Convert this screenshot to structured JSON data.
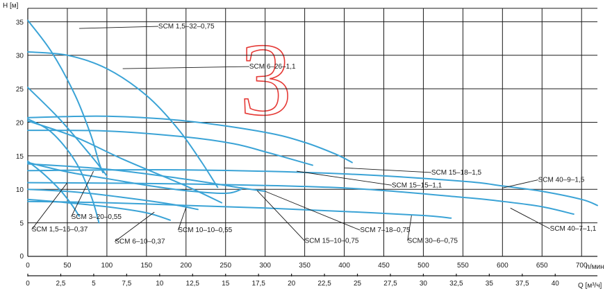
{
  "chart_data": {
    "type": "line",
    "title": "",
    "ylabel": "H [м]",
    "xlabel": "л/мин",
    "x2label": "Q [м³/ч]",
    "xlim": [
      0,
      720
    ],
    "ylim": [
      0,
      37
    ],
    "x_ticks": [
      "0",
      "50",
      "100",
      "150",
      "200",
      "250",
      "300",
      "350",
      "400",
      "450",
      "500",
      "550",
      "600",
      "650",
      "700"
    ],
    "y_ticks": [
      "5",
      "10",
      "15",
      "20",
      "25",
      "30",
      "35"
    ],
    "x2_ticks": [
      "0",
      "2,5",
      "5",
      "7,5",
      "10",
      "12,5",
      "15",
      "17,5",
      "20",
      "22,5",
      "25",
      "27,5",
      "30",
      "32,5",
      "35",
      "37,5",
      "40"
    ],
    "grid": true,
    "series": [
      {
        "name": "SCM 1,5–32–0,75",
        "x": [
          0,
          30,
          60,
          80,
          90,
          95
        ],
        "y": [
          35.2,
          30.5,
          24.0,
          18.0,
          14.0,
          12.5
        ],
        "label_at": [
          65,
          34
        ]
      },
      {
        "name": "SCM 6–26–1,1",
        "x": [
          0,
          50,
          100,
          150,
          190,
          220,
          240
        ],
        "y": [
          30.5,
          30.0,
          28.0,
          24.0,
          19.0,
          14.0,
          10.3
        ],
        "label_at": [
          120,
          28
        ]
      },
      {
        "name": "SCM 15–18–1,5",
        "x": [
          0,
          100,
          200,
          300,
          350,
          390,
          410
        ],
        "y": [
          20.7,
          20.9,
          20.2,
          18.5,
          17.0,
          15.2,
          14.0
        ],
        "label_at": [
          400,
          13.2
        ]
      },
      {
        "name": "SCM 15–15–1,1",
        "x": [
          0,
          100,
          200,
          260,
          300,
          330,
          360
        ],
        "y": [
          18.8,
          18.7,
          17.8,
          16.8,
          15.6,
          14.6,
          13.6
        ],
        "label_at": [
          340,
          12.7
        ]
      },
      {
        "name": "SCM 40–9–1,5",
        "x": [
          0,
          200,
          400,
          550,
          600,
          650,
          700,
          720
        ],
        "y": [
          12.8,
          12.9,
          12.3,
          11.2,
          10.5,
          9.7,
          8.5,
          7.6
        ],
        "label_at": [
          600,
          10.2
        ]
      },
      {
        "name": "SCM 40–7–1,1",
        "x": [
          0,
          200,
          400,
          550,
          600,
          650,
          690
        ],
        "y": [
          11.0,
          10.8,
          10.2,
          8.8,
          8.2,
          7.4,
          6.3
        ],
        "label_at": [
          610,
          7.2
        ]
      },
      {
        "name": "SCM 30–6–0,75",
        "x": [
          0,
          100,
          200,
          300,
          400,
          500,
          535
        ],
        "y": [
          8.2,
          8.0,
          7.6,
          7.2,
          6.7,
          6.1,
          5.7
        ],
        "label_at": [
          485,
          6.1
        ]
      },
      {
        "name": "SCM 15–10–0,75",
        "x": [
          0,
          100,
          200,
          270,
          300
        ],
        "y": [
          13.8,
          13.0,
          11.5,
          10.2,
          9.7
        ],
        "label_at": [
          290,
          9.8
        ]
      },
      {
        "name": "SCM 7–18–0,75",
        "x": [
          0,
          50,
          100,
          150,
          200,
          250,
          270
        ],
        "y": [
          14.0,
          12.6,
          11.6,
          10.6,
          9.8,
          9.4,
          10.0
        ],
        "label_at": [
          300,
          9.7
        ]
      },
      {
        "name": "SCM 3–20–0,55",
        "x": [
          0,
          30,
          60,
          80,
          90
        ],
        "y": [
          20.5,
          18.5,
          14.2,
          9.0,
          5.0
        ],
        "label_at": [
          83,
          12.7
        ]
      },
      {
        "name": "SCM 1,5–16–0,37",
        "x": [
          0,
          20,
          40,
          55,
          65
        ],
        "y": [
          14.2,
          12.3,
          10.0,
          7.8,
          6.0
        ],
        "label_at": [
          50,
          11.0
        ]
      },
      {
        "name": "SCM 6–10–0,37",
        "x": [
          0,
          50,
          100,
          150,
          180
        ],
        "y": [
          8.5,
          8.0,
          7.4,
          6.5,
          5.4
        ],
        "label_at": [
          160,
          6.6
        ]
      },
      {
        "name": "SCM 10–10–0,55",
        "x": [
          0,
          60,
          120,
          180,
          215
        ],
        "y": [
          10.0,
          9.6,
          8.8,
          7.8,
          7.0
        ],
        "label_at": [
          200,
          7.3
        ]
      },
      {
        "name": "",
        "x": [
          0,
          40,
          80,
          100
        ],
        "y": [
          25.2,
          20.5,
          15.0,
          12.0
        ]
      },
      {
        "name": "",
        "x": [
          0,
          60,
          120,
          200,
          245
        ],
        "y": [
          20.2,
          17.8,
          14.5,
          10.5,
          8.0
        ]
      }
    ],
    "annotations": [
      {
        "text": "SCM 1,5–32–0,75",
        "x": 165,
        "y": 34,
        "anchor": "start"
      },
      {
        "text": "SCM 6–26–1,1",
        "x": 280,
        "y": 28,
        "anchor": "start"
      },
      {
        "text": "SCM 15–18–1,5",
        "x": 510,
        "y": 12.2,
        "anchor": "start"
      },
      {
        "text": "SCM 15–15–1,1",
        "x": 460,
        "y": 10.3,
        "anchor": "start"
      },
      {
        "text": "SCM 40–9–1,5",
        "x": 645,
        "y": 11.1,
        "anchor": "start"
      },
      {
        "text": "SCM 40–7–1,1",
        "x": 660,
        "y": 3.8,
        "anchor": "start"
      },
      {
        "text": "SCM 30–6–0,75",
        "x": 480,
        "y": 2.0,
        "anchor": "start"
      },
      {
        "text": "SCM 15–10–0,75",
        "x": 350,
        "y": 2.0,
        "anchor": "start"
      },
      {
        "text": "SCM 7–18–0,75",
        "x": 420,
        "y": 3.6,
        "anchor": "start"
      },
      {
        "text": "SCM 3–20–0,55",
        "x": 55,
        "y": 5.6,
        "anchor": "start"
      },
      {
        "text": "SCM 1,5–16–0,37",
        "x": 5,
        "y": 3.7,
        "anchor": "start"
      },
      {
        "text": "SCM 6–10–0,37",
        "x": 110,
        "y": 1.9,
        "anchor": "start"
      },
      {
        "text": "SCM 10–10–0,55",
        "x": 190,
        "y": 3.6,
        "anchor": "start"
      }
    ],
    "marker": "3"
  }
}
